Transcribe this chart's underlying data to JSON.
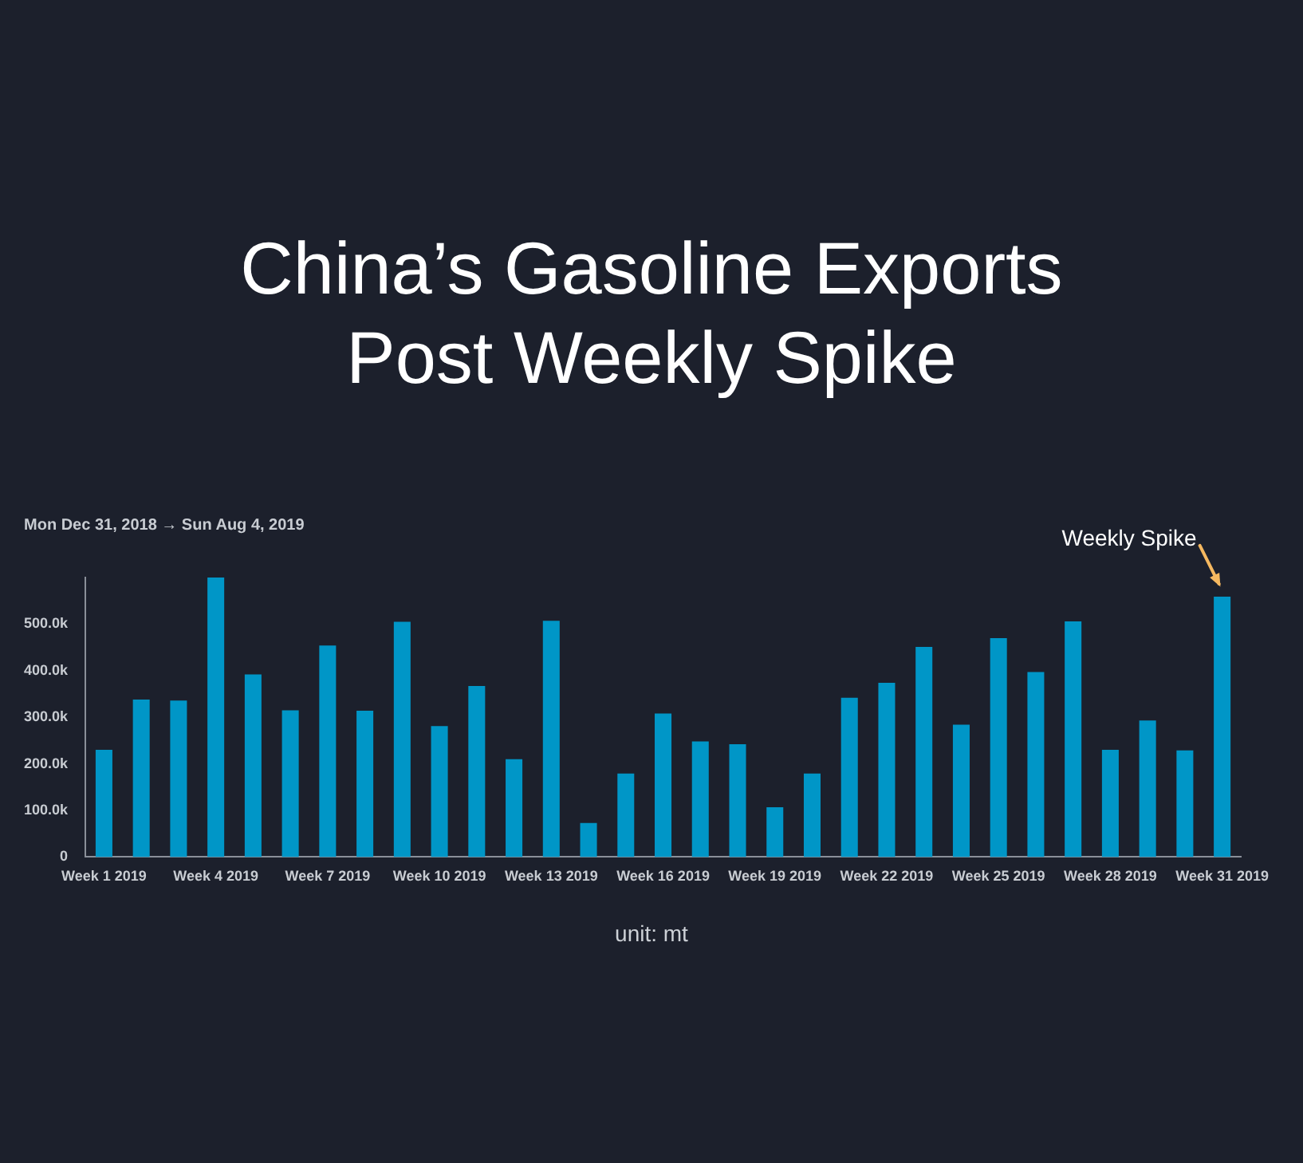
{
  "chart_data": {
    "type": "bar",
    "title": "China’s Gasoline Exports Post Weekly Spike",
    "subtitle": "Mon Dec 31, 2018 → Sun Aug 4, 2019",
    "categories": [
      "Week 1 2019",
      null,
      null,
      "Week 4 2019",
      null,
      null,
      "Week 7 2019",
      null,
      null,
      "Week 10 2019",
      null,
      null,
      "Week 13 2019",
      null,
      null,
      "Week 16 2019",
      null,
      null,
      "Week 19 2019",
      null,
      null,
      "Week 22 2019",
      null,
      null,
      "Week 25 2019",
      null,
      null,
      "Week 28 2019",
      null,
      null,
      "Week 31 2019"
    ],
    "values": [
      230000,
      338000,
      336000,
      600000,
      392000,
      315000,
      454000,
      314000,
      505000,
      281000,
      367000,
      210000,
      507000,
      73000,
      179000,
      308000,
      248000,
      242000,
      107000,
      179000,
      342000,
      374000,
      451000,
      284000,
      470000,
      397000,
      506000,
      230000,
      293000,
      229000,
      559000
    ],
    "color": "#0096c7",
    "ylim": [
      0,
      600000
    ],
    "yticks": [
      {
        "value": 0,
        "label": "0"
      },
      {
        "value": 100000,
        "label": "100.0k"
      },
      {
        "value": 200000,
        "label": "200.0k"
      },
      {
        "value": 300000,
        "label": "300.0k"
      },
      {
        "value": 400000,
        "label": "400.0k"
      },
      {
        "value": 500000,
        "label": "500.0k"
      }
    ],
    "grid": false,
    "legend": false,
    "annotations": [
      {
        "text": "Weekly Spike",
        "x": "Week 31 2019",
        "y": 559000
      },
      "unit: mt"
    ]
  }
}
